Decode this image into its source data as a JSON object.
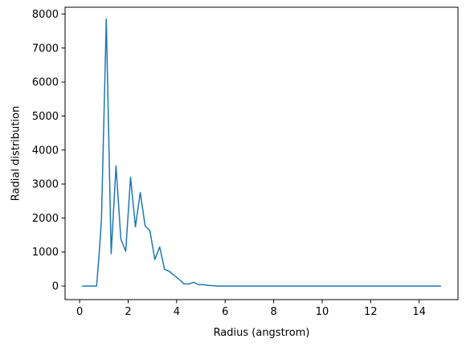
{
  "chart_data": {
    "type": "line",
    "title": "",
    "xlabel": "Radius (angstrom)",
    "ylabel": "Radial distribution",
    "xlim": [
      -0.6,
      15.6
    ],
    "ylim": [
      -400,
      8200
    ],
    "xticks": [
      0,
      2,
      4,
      6,
      8,
      10,
      12,
      14
    ],
    "yticks": [
      0,
      1000,
      2000,
      3000,
      4000,
      5000,
      6000,
      7000,
      8000
    ],
    "grid": false,
    "legend": "none",
    "series": [
      {
        "color": "#1f77b4",
        "x": [
          0.1,
          0.3,
          0.5,
          0.7,
          0.8,
          0.9,
          1.1,
          1.3,
          1.5,
          1.7,
          1.9,
          2.1,
          2.3,
          2.5,
          2.7,
          2.9,
          3.1,
          3.3,
          3.5,
          3.7,
          3.9,
          4.1,
          4.3,
          4.5,
          4.7,
          4.9,
          5.1,
          5.3,
          5.5,
          5.7,
          5.9,
          6.1,
          6.3,
          6.5,
          6.7,
          6.9,
          7.1,
          7.3,
          7.5,
          7.7,
          7.9,
          8.1,
          8.3,
          8.5,
          8.7,
          8.9,
          9.1,
          9.3,
          9.5,
          9.7,
          9.9,
          10.1,
          10.3,
          10.5,
          10.7,
          10.9,
          11.1,
          11.3,
          11.5,
          11.7,
          11.9,
          12.1,
          12.3,
          12.5,
          12.7,
          12.9,
          13.1,
          13.3,
          13.5,
          13.7,
          13.9,
          14.1,
          14.3,
          14.5,
          14.7,
          14.9
        ],
        "values": [
          0,
          0,
          0,
          0,
          900,
          1950,
          7850,
          950,
          3530,
          1380,
          1020,
          3200,
          1740,
          2750,
          1770,
          1620,
          780,
          1150,
          490,
          430,
          310,
          200,
          60,
          60,
          110,
          40,
          40,
          20,
          10,
          0,
          0,
          0,
          0,
          0,
          0,
          0,
          0,
          0,
          0,
          0,
          0,
          0,
          0,
          0,
          0,
          0,
          0,
          0,
          0,
          0,
          0,
          0,
          0,
          0,
          0,
          0,
          0,
          0,
          0,
          0,
          0,
          0,
          0,
          0,
          0,
          0,
          0,
          0,
          0,
          0,
          0,
          0,
          0,
          0,
          0,
          0
        ]
      }
    ]
  }
}
